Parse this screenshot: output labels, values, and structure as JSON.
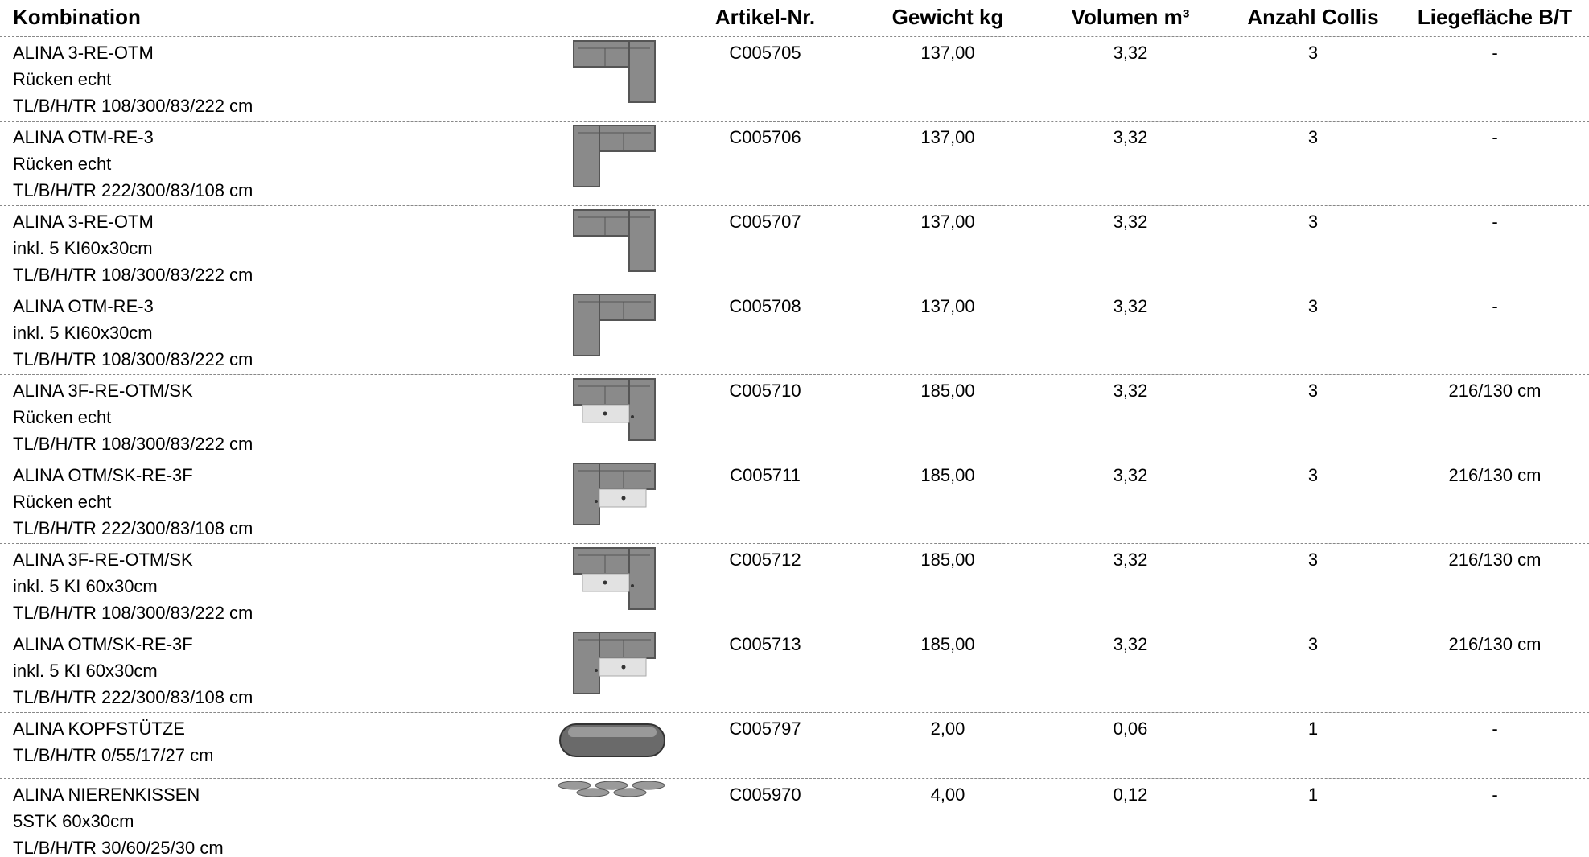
{
  "header": {
    "columns": [
      "Kombination",
      "Artikel-Nr.",
      "Gewicht kg",
      "Volumen m³",
      "Anzahl Collis",
      "Liegefläche B/T"
    ]
  },
  "rows": [
    {
      "lines": [
        "ALINA 3-RE-OTM",
        "Rücken echt",
        "TL/B/H/TR 108/300/83/222 cm"
      ],
      "artikel": "C005705",
      "gewicht": "137,00",
      "volumen": "3,32",
      "collis": "3",
      "liege": "-"
    },
    {
      "lines": [
        "ALINA OTM-RE-3",
        "Rücken echt",
        "TL/B/H/TR 222/300/83/108 cm"
      ],
      "artikel": "C005706",
      "gewicht": "137,00",
      "volumen": "3,32",
      "collis": "3",
      "liege": "-"
    },
    {
      "lines": [
        "ALINA 3-RE-OTM",
        "inkl. 5 KI60x30cm",
        "TL/B/H/TR 108/300/83/222 cm"
      ],
      "artikel": "C005707",
      "gewicht": "137,00",
      "volumen": "3,32",
      "collis": "3",
      "liege": "-"
    },
    {
      "lines": [
        "ALINA OTM-RE-3",
        "inkl. 5 KI60x30cm",
        "TL/B/H/TR 108/300/83/222 cm"
      ],
      "artikel": "C005708",
      "gewicht": "137,00",
      "volumen": "3,32",
      "collis": "3",
      "liege": "-"
    },
    {
      "lines": [
        "ALINA 3F-RE-OTM/SK",
        "Rücken echt",
        "TL/B/H/TR 108/300/83/222 cm"
      ],
      "artikel": "C005710",
      "gewicht": "185,00",
      "volumen": "3,32",
      "collis": "3",
      "liege": "216/130 cm"
    },
    {
      "lines": [
        "ALINA OTM/SK-RE-3F",
        "Rücken echt",
        "TL/B/H/TR 222/300/83/108 cm"
      ],
      "artikel": "C005711",
      "gewicht": "185,00",
      "volumen": "3,32",
      "collis": "3",
      "liege": "216/130 cm"
    },
    {
      "lines": [
        "ALINA 3F-RE-OTM/SK",
        "inkl. 5 KI 60x30cm",
        "TL/B/H/TR 108/300/83/222 cm"
      ],
      "artikel": "C005712",
      "gewicht": "185,00",
      "volumen": "3,32",
      "collis": "3",
      "liege": "216/130 cm"
    },
    {
      "lines": [
        "ALINA OTM/SK-RE-3F",
        "inkl. 5 KI 60x30cm",
        "TL/B/H/TR 222/300/83/108 cm"
      ],
      "artikel": "C005713",
      "gewicht": "185,00",
      "volumen": "3,32",
      "collis": "3",
      "liege": "216/130 cm"
    },
    {
      "lines": [
        "ALINA KOPFSTÜTZE",
        "TL/B/H/TR 0/55/17/27 cm"
      ],
      "artikel": "C005797",
      "gewicht": "2,00",
      "volumen": "0,06",
      "collis": "1",
      "liege": "-"
    },
    {
      "lines": [
        "ALINA NIERENKISSEN",
        "5STK 60x30cm",
        "TL/B/H/TR 30/60/25/30 cm"
      ],
      "artikel": "C005970",
      "gewicht": "4,00",
      "volumen": "0,12",
      "collis": "1",
      "liege": "-"
    }
  ]
}
